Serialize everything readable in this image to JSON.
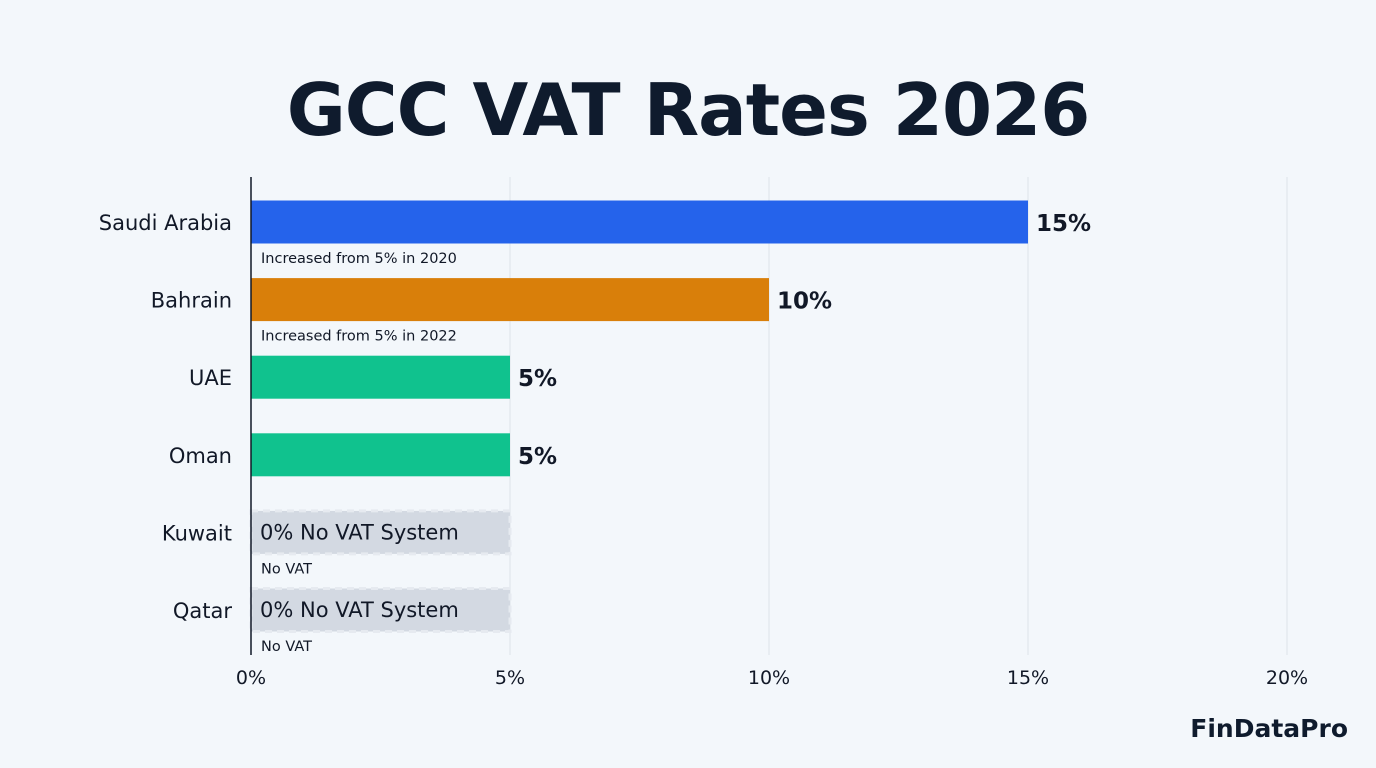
{
  "title": "GCC VAT Rates 2026",
  "brand": "FinDataPro",
  "chart_data": {
    "type": "bar",
    "orientation": "horizontal",
    "title": "GCC VAT Rates 2026",
    "categories": [
      "Saudi Arabia",
      "Bahrain",
      "UAE",
      "Oman",
      "Kuwait",
      "Qatar"
    ],
    "values": [
      15,
      10,
      5,
      5,
      0,
      0
    ],
    "value_labels": [
      "15%",
      "10%",
      "5%",
      "5%",
      "0% No VAT System",
      "0% No VAT System"
    ],
    "notes": [
      "Increased from 5% in 2020",
      "Increased from 5% in 2022",
      "",
      "",
      "No VAT",
      "No VAT"
    ],
    "colors": [
      "#2563eb",
      "#d97f0a",
      "#10c28e",
      "#10c28e",
      "#d3d9e2",
      "#d3d9e2"
    ],
    "xlim": [
      0,
      20
    ],
    "xticks": [
      0,
      5,
      10,
      15,
      20
    ],
    "xtick_labels": [
      "0%",
      "5%",
      "10%",
      "15%",
      "20%"
    ],
    "grid": true,
    "xlabel": "",
    "ylabel": ""
  }
}
